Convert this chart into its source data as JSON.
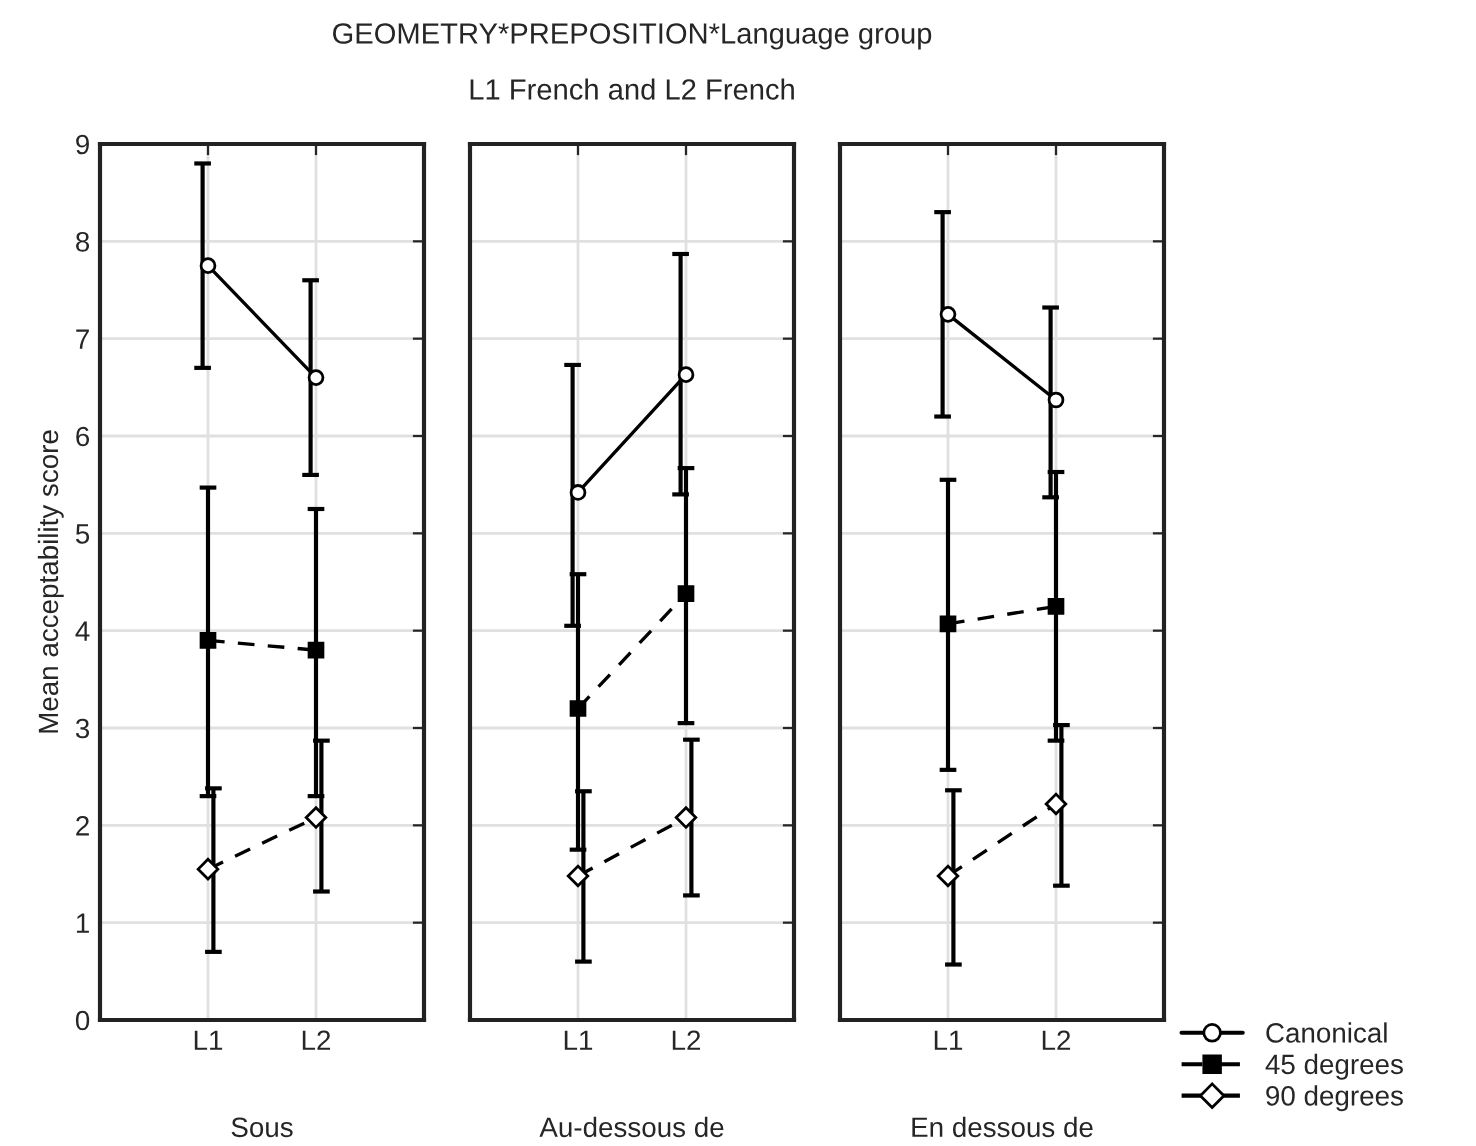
{
  "chart_data": [
    {
      "type": "line",
      "xlabel": "Sous",
      "ylabel": "Mean acceptability score",
      "categories": [
        "L1",
        "L2"
      ],
      "ylim": [
        0,
        9
      ],
      "yticks": [
        0,
        1,
        2,
        3,
        4,
        5,
        6,
        7,
        8,
        9
      ],
      "grid": true,
      "series": [
        {
          "color": "#000000",
          "marker": "circle",
          "line_style": "solid",
          "values": [
            7.75,
            6.6
          ],
          "errors": [
            [
              6.7,
              8.8
            ],
            [
              5.6,
              7.6
            ]
          ]
        },
        {
          "color": "#000000",
          "marker": "square",
          "line_style": "dashed",
          "values": [
            3.9,
            3.8
          ],
          "errors": [
            [
              2.3,
              5.47
            ],
            [
              2.3,
              5.25
            ]
          ]
        },
        {
          "color": "#000000",
          "marker": "diamond",
          "line_style": "dashed",
          "values": [
            1.55,
            2.08
          ],
          "errors": [
            [
              0.7,
              2.38
            ],
            [
              1.32,
              2.87
            ]
          ]
        }
      ]
    },
    {
      "type": "line",
      "title": "GEOMETRY*PREPOSITION*Language group",
      "subtitle": "L1 French and L2 French",
      "xlabel": "Au-dessous de",
      "categories": [
        "L1",
        "L2"
      ],
      "ylim": [
        0,
        9
      ],
      "grid": true,
      "tick_labels": "x",
      "series": [
        {
          "color": "#000000",
          "marker": "circle",
          "line_style": "solid",
          "values": [
            5.42,
            6.63
          ],
          "errors": [
            [
              4.05,
              6.73
            ],
            [
              5.4,
              7.87
            ]
          ]
        },
        {
          "color": "#000000",
          "marker": "square",
          "line_style": "dashed",
          "values": [
            3.2,
            4.38
          ],
          "errors": [
            [
              1.75,
              4.58
            ],
            [
              3.05,
              5.67
            ]
          ]
        },
        {
          "color": "#000000",
          "marker": "diamond",
          "line_style": "dashed",
          "values": [
            1.48,
            2.08
          ],
          "errors": [
            [
              0.6,
              2.35
            ],
            [
              1.28,
              2.88
            ]
          ]
        }
      ]
    },
    {
      "type": "line",
      "xlabel": "En dessous de",
      "categories": [
        "L1",
        "L2"
      ],
      "ylim": [
        0,
        9
      ],
      "grid": true,
      "legend": "bottom right",
      "tick_labels": "x",
      "series": [
        {
          "name": "Canonical",
          "color": "#000000",
          "marker": "circle",
          "line_style": "solid",
          "values": [
            7.25,
            6.37
          ],
          "errors": [
            [
              6.2,
              8.3
            ],
            [
              5.37,
              7.32
            ]
          ]
        },
        {
          "name": "45 degrees",
          "color": "#000000",
          "marker": "square",
          "line_style": "dashed",
          "values": [
            4.07,
            4.25
          ],
          "errors": [
            [
              2.57,
              5.55
            ],
            [
              2.87,
              5.63
            ]
          ]
        },
        {
          "name": "90 degrees",
          "color": "#000000",
          "marker": "diamond",
          "line_style": "dashed",
          "values": [
            1.48,
            2.22
          ],
          "errors": [
            [
              0.57,
              2.36
            ],
            [
              1.38,
              3.03
            ]
          ]
        }
      ]
    }
  ]
}
